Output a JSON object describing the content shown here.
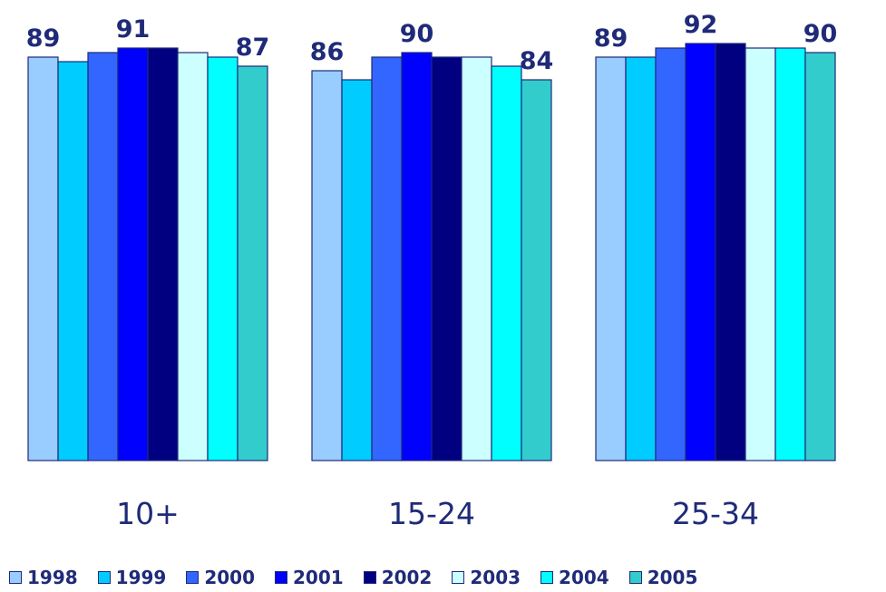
{
  "chart_data": {
    "type": "bar",
    "categories": [
      "10+",
      "15-24",
      "25-34"
    ],
    "series": [
      {
        "name": "1998",
        "color": "#99ccff",
        "values": [
          89,
          86,
          89
        ]
      },
      {
        "name": "1999",
        "color": "#00ccff",
        "values": [
          88,
          84,
          89
        ]
      },
      {
        "name": "2000",
        "color": "#3366ff",
        "values": [
          90,
          89,
          91
        ]
      },
      {
        "name": "2001",
        "color": "#0000ff",
        "values": [
          91,
          90,
          92
        ]
      },
      {
        "name": "2002",
        "color": "#000080",
        "values": [
          91,
          89,
          92
        ]
      },
      {
        "name": "2003",
        "color": "#ccffff",
        "values": [
          90,
          89,
          91
        ]
      },
      {
        "name": "2004",
        "color": "#00ffff",
        "values": [
          89,
          87,
          91
        ]
      },
      {
        "name": "2005",
        "color": "#33cccc",
        "values": [
          87,
          84,
          90
        ]
      }
    ],
    "data_labels": [
      {
        "category": 0,
        "series": 0,
        "text": "89"
      },
      {
        "category": 0,
        "series": 3,
        "text": "91"
      },
      {
        "category": 0,
        "series": 7,
        "text": "87"
      },
      {
        "category": 1,
        "series": 0,
        "text": "86"
      },
      {
        "category": 1,
        "series": 3,
        "text": "90"
      },
      {
        "category": 1,
        "series": 7,
        "text": "84"
      },
      {
        "category": 2,
        "series": 0,
        "text": "89"
      },
      {
        "category": 2,
        "series": 3,
        "text": "92"
      },
      {
        "category": 2,
        "series": 7,
        "text": "90"
      }
    ],
    "ylim": [
      0,
      100
    ],
    "grid": false,
    "legend_position": "bottom"
  }
}
